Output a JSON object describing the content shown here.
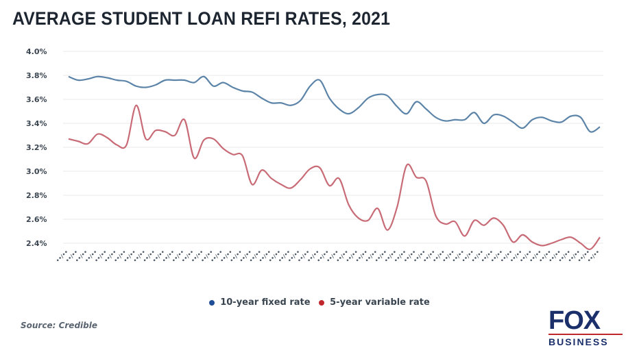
{
  "title": "AVERAGE STUDENT LOAN REFI RATES, 2021",
  "source": "Source: Credible",
  "logo": {
    "top": "FOX",
    "bottom": "BUSINESS"
  },
  "colors": {
    "fixed": "#5b84a8",
    "variable": "#c86b76",
    "grid": "#eeeeee",
    "title": "#1d2630",
    "logo": "#1b2f6b",
    "logo_accent": "#c0272d"
  },
  "legend": [
    {
      "label": "10-year fixed rate",
      "color": "#1f4e96"
    },
    {
      "label": "5-year variable rate",
      "color": "#c0272d"
    }
  ],
  "chart_data": {
    "type": "line",
    "title": "AVERAGE STUDENT LOAN REFI RATES, 2021",
    "xlabel": "",
    "ylabel": "",
    "ylim": [
      2.4,
      4.0
    ],
    "yticks": [
      "4.0%",
      "3.8%",
      "3.6%",
      "3.4%",
      "3.2%",
      "3.0%",
      "2.8%",
      "2.6%",
      "2.4%"
    ],
    "grid": true,
    "legend_position": "bottom",
    "x_note": "Weekly dates across 2021 (tick labels rotated, illegible at source resolution)",
    "x": [
      1,
      2,
      3,
      4,
      5,
      6,
      7,
      8,
      9,
      10,
      11,
      12,
      13,
      14,
      15,
      16,
      17,
      18,
      19,
      20,
      21,
      22,
      23,
      24,
      25,
      26,
      27,
      28,
      29,
      30,
      31,
      32,
      33,
      34,
      35,
      36,
      37,
      38,
      39,
      40,
      41,
      42,
      43,
      44,
      45,
      46,
      47,
      48,
      49,
      50,
      51,
      52,
      53,
      54,
      55,
      56
    ],
    "series": [
      {
        "name": "10-year fixed rate",
        "values": [
          3.79,
          3.76,
          3.77,
          3.79,
          3.78,
          3.76,
          3.75,
          3.71,
          3.7,
          3.72,
          3.76,
          3.76,
          3.76,
          3.74,
          3.79,
          3.71,
          3.74,
          3.7,
          3.67,
          3.66,
          3.61,
          3.57,
          3.57,
          3.55,
          3.59,
          3.71,
          3.76,
          3.61,
          3.52,
          3.48,
          3.53,
          3.61,
          3.64,
          3.63,
          3.54,
          3.48,
          3.58,
          3.52,
          3.45,
          3.42,
          3.43,
          3.43,
          3.49,
          3.4,
          3.47,
          3.46,
          3.41,
          3.36,
          3.43,
          3.45,
          3.42,
          3.41,
          3.46,
          3.45,
          3.33,
          3.37
        ]
      },
      {
        "name": "5-year variable rate",
        "values": [
          3.27,
          3.25,
          3.23,
          3.31,
          3.28,
          3.22,
          3.22,
          3.55,
          3.27,
          3.34,
          3.33,
          3.3,
          3.43,
          3.11,
          3.26,
          3.27,
          3.19,
          3.14,
          3.13,
          2.89,
          3.01,
          2.94,
          2.89,
          2.86,
          2.93,
          3.02,
          3.03,
          2.88,
          2.94,
          2.72,
          2.61,
          2.59,
          2.69,
          2.51,
          2.7,
          3.05,
          2.95,
          2.92,
          2.63,
          2.56,
          2.58,
          2.46,
          2.59,
          2.55,
          2.61,
          2.55,
          2.41,
          2.47,
          2.41,
          2.38,
          2.4,
          2.43,
          2.45,
          2.4,
          2.35,
          2.45
        ]
      }
    ]
  }
}
